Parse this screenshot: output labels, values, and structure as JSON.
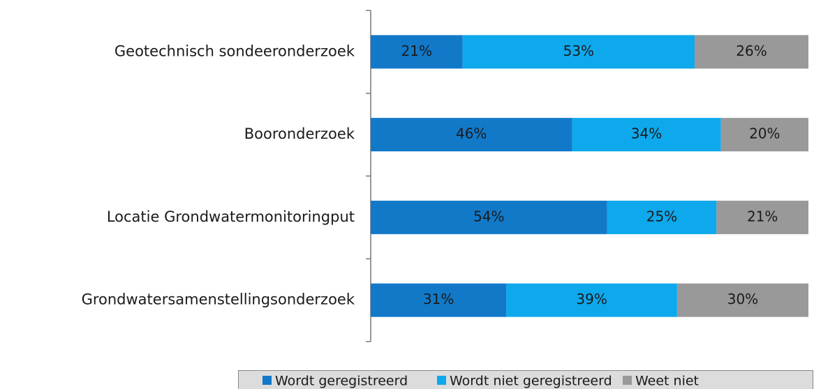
{
  "chart_data": {
    "type": "stacked-bar-horizontal",
    "categories": [
      "Geotechnisch sondeeronderzoek",
      "Booronderzoek",
      "Locatie Grondwatermonitoringput",
      "Grondwatersamenstellingsonderzoek"
    ],
    "series": [
      {
        "name": "Wordt geregistreerd",
        "color": "#1279c9",
        "values": [
          21,
          46,
          54,
          31
        ],
        "value_labels": [
          "21%",
          "46%",
          "54%",
          "31%"
        ]
      },
      {
        "name": "Wordt niet geregistreerd",
        "color": "#0da9ec",
        "values": [
          53,
          34,
          25,
          39
        ],
        "value_labels": [
          "53%",
          "34%",
          "25%",
          "39%"
        ]
      },
      {
        "name": "Weet niet",
        "color": "#999999",
        "values": [
          26,
          20,
          21,
          30
        ],
        "value_labels": [
          "26%",
          "20%",
          "21%",
          "30%"
        ]
      }
    ],
    "xlim": [
      0,
      100
    ],
    "legend": "bottom-right"
  }
}
